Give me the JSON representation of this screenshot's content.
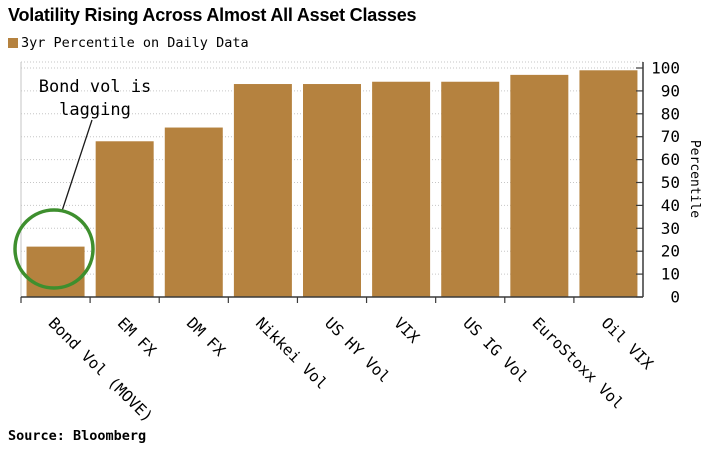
{
  "header": {
    "title": "Volatility Rising Across Almost All Asset Classes",
    "legend_label": "3yr Percentile on Daily Data"
  },
  "footer": {
    "source": "Source: Bloomberg"
  },
  "colors": {
    "bar": "#b5823f",
    "annotation_circle": "#3e8f2e",
    "grid": "#c6c6c6",
    "axis": "#3a3a3a",
    "text": "#000000"
  },
  "chart_data": {
    "type": "bar",
    "title": "Volatility Rising Across Almost All Asset Classes",
    "legend": [
      "3yr Percentile on Daily Data"
    ],
    "legend_position": "top-left",
    "categories": [
      "Bond Vol (MOVE)",
      "EM FX",
      "DM FX",
      "Nikkei Vol",
      "US HY Vol",
      "VIX",
      "US IG Vol",
      "EuroStoxx Vol",
      "Oil VIX"
    ],
    "values": [
      22,
      68,
      74,
      93,
      93,
      94,
      94,
      97,
      99
    ],
    "xlabel": "",
    "ylabel": "Percentile",
    "ylim": [
      0,
      100
    ],
    "yticks": [
      0,
      10,
      20,
      30,
      40,
      50,
      60,
      70,
      80,
      90,
      100
    ],
    "yaxis_side": "right",
    "grid": "horizontal-dotted",
    "annotation": {
      "lines": [
        "Bond vol is",
        "lagging"
      ],
      "text": "Bond vol is lagging",
      "target_category": "Bond Vol (MOVE)",
      "marker": "green-circle"
    }
  }
}
